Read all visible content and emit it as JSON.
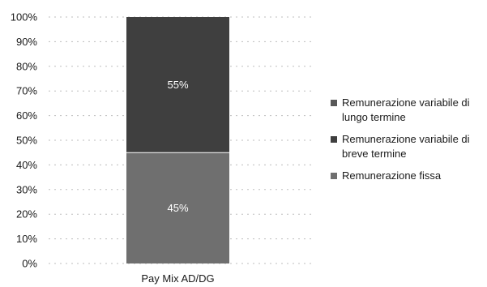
{
  "chart_data": {
    "type": "bar",
    "stacked": true,
    "percent_axis": true,
    "categories": [
      "Pay Mix AD/DG"
    ],
    "series": [
      {
        "name": "Remunerazione fissa",
        "values": [
          45
        ],
        "label": "45%",
        "color": "#6f6f6f"
      },
      {
        "name": "Remunerazione variabile di breve termine",
        "values": [
          55
        ],
        "label": "55%",
        "color": "#3f3f3f"
      },
      {
        "name": "Remunerazione variabile di lungo termine",
        "values": [
          0
        ],
        "label": "",
        "color": "#585858"
      }
    ],
    "y_ticks": [
      "0%",
      "10%",
      "20%",
      "30%",
      "40%",
      "50%",
      "60%",
      "70%",
      "80%",
      "90%",
      "100%"
    ],
    "ylim": [
      0,
      100
    ],
    "title": "",
    "xlabel": "",
    "ylabel": "",
    "grid": true,
    "legend_position": "right"
  },
  "legend": {
    "items": [
      {
        "label": "Remunerazione variabile di lungo termine",
        "color": "#585858"
      },
      {
        "label": "Remunerazione variabile di breve termine",
        "color": "#3f3f3f"
      },
      {
        "label": "Remunerazione fissa",
        "color": "#6f6f6f"
      }
    ]
  }
}
